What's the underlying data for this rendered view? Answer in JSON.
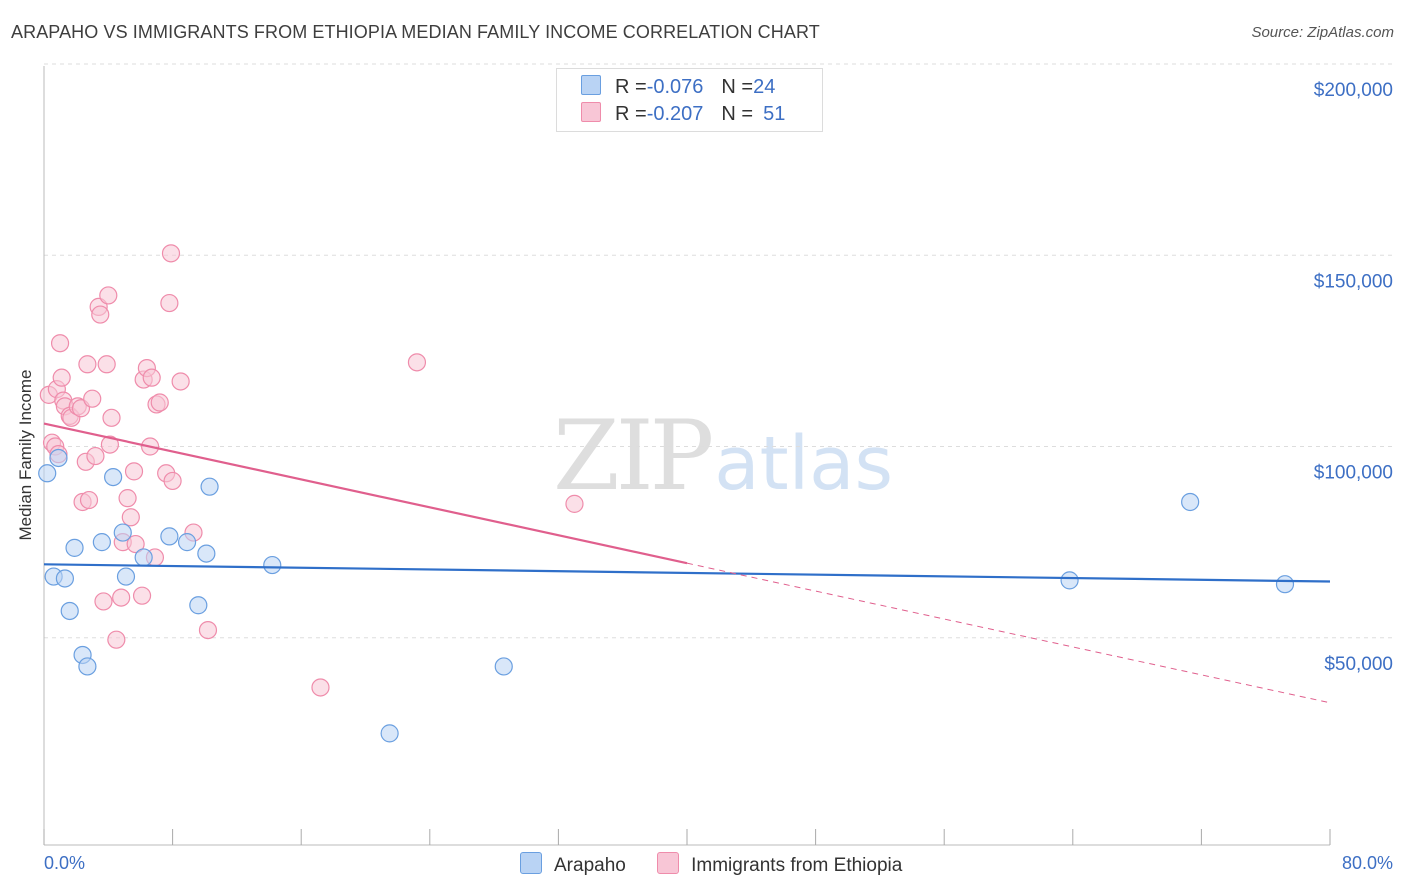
{
  "title": "ARAPAHO VS IMMIGRANTS FROM ETHIOPIA MEDIAN FAMILY INCOME CORRELATION CHART",
  "source": "Source: ZipAtlas.com",
  "watermark": {
    "part1": "ZIP",
    "part2": "atlas"
  },
  "legend": {
    "rows": [
      {
        "r_label": "R = ",
        "r_value": "-0.076",
        "n_label": "N = ",
        "n_value": "24"
      },
      {
        "r_label": "R = ",
        "r_value": "-0.207",
        "n_label": "N = ",
        "n_value": "51"
      }
    ]
  },
  "colors": {
    "arapaho": "#6a9fe0",
    "arapaho_fill": "#b9d3f4",
    "arapaho_line": "#2f6fc9",
    "ethiopia": "#ef8cab",
    "ethiopia_fill": "#f8c6d6",
    "ethiopia_line": "#e05f8d",
    "axis_label": "#3d6fc4",
    "grid": "#dddddd"
  },
  "chart_data": {
    "type": "scatter",
    "title": "ARAPAHO VS IMMIGRANTS FROM ETHIOPIA MEDIAN FAMILY INCOME CORRELATION CHART",
    "xlabel": "",
    "ylabel": "Median Family Income",
    "xlim": [
      0,
      80
    ],
    "ylim": [
      0,
      200000
    ],
    "x_tick_labels": [
      "0.0%",
      "80.0%"
    ],
    "y_ticks": [
      {
        "value": 50000,
        "label": "$50,000"
      },
      {
        "value": 100000,
        "label": "$100,000"
      },
      {
        "value": 150000,
        "label": "$150,000"
      },
      {
        "value": 200000,
        "label": "$200,000"
      }
    ],
    "grid": true,
    "legend_position": "bottom",
    "series": [
      {
        "name": "Arapaho",
        "r": -0.076,
        "n": 24,
        "trend": {
          "x": [
            0,
            80
          ],
          "y": [
            69200,
            64700
          ]
        },
        "points": [
          [
            0.2,
            93000
          ],
          [
            0.6,
            66000
          ],
          [
            0.9,
            97000
          ],
          [
            1.3,
            65500
          ],
          [
            1.6,
            57000
          ],
          [
            1.9,
            73500
          ],
          [
            2.4,
            45500
          ],
          [
            2.7,
            42500
          ],
          [
            3.6,
            75000
          ],
          [
            4.3,
            92000
          ],
          [
            4.9,
            77500
          ],
          [
            5.1,
            66000
          ],
          [
            6.2,
            71000
          ],
          [
            7.8,
            76500
          ],
          [
            8.9,
            75000
          ],
          [
            9.6,
            58500
          ],
          [
            10.1,
            72000
          ],
          [
            10.3,
            89500
          ],
          [
            14.2,
            69000
          ],
          [
            21.5,
            25000
          ],
          [
            28.6,
            42500
          ],
          [
            63.8,
            65000
          ],
          [
            71.3,
            85500
          ],
          [
            77.2,
            64000
          ]
        ]
      },
      {
        "name": "Immigrants from Ethiopia",
        "r": -0.207,
        "n": 51,
        "trend": {
          "x": [
            0,
            40
          ],
          "y": [
            106000,
            69500
          ]
        },
        "trend_extension": {
          "x": [
            40,
            80
          ],
          "y": [
            69500,
            33000
          ]
        },
        "points": [
          [
            0.3,
            113500
          ],
          [
            0.5,
            101000
          ],
          [
            0.7,
            100000
          ],
          [
            0.8,
            115000
          ],
          [
            0.9,
            98000
          ],
          [
            1.0,
            127000
          ],
          [
            1.1,
            118000
          ],
          [
            1.2,
            112000
          ],
          [
            1.3,
            110500
          ],
          [
            1.6,
            108000
          ],
          [
            1.7,
            107500
          ],
          [
            2.1,
            110500
          ],
          [
            2.3,
            110000
          ],
          [
            2.4,
            85500
          ],
          [
            2.6,
            96000
          ],
          [
            2.7,
            121500
          ],
          [
            2.8,
            86000
          ],
          [
            3.0,
            112500
          ],
          [
            3.2,
            97500
          ],
          [
            3.4,
            136500
          ],
          [
            3.5,
            134500
          ],
          [
            3.7,
            59500
          ],
          [
            3.9,
            121500
          ],
          [
            4.0,
            139500
          ],
          [
            4.1,
            100500
          ],
          [
            4.2,
            107500
          ],
          [
            4.5,
            49500
          ],
          [
            4.8,
            60500
          ],
          [
            4.9,
            75000
          ],
          [
            5.2,
            86500
          ],
          [
            5.4,
            81500
          ],
          [
            5.6,
            93500
          ],
          [
            5.7,
            74500
          ],
          [
            6.1,
            61000
          ],
          [
            6.2,
            117500
          ],
          [
            6.4,
            120500
          ],
          [
            6.6,
            100000
          ],
          [
            6.7,
            118000
          ],
          [
            6.9,
            71000
          ],
          [
            7.0,
            111000
          ],
          [
            7.2,
            111500
          ],
          [
            7.6,
            93000
          ],
          [
            7.8,
            137500
          ],
          [
            7.9,
            150500
          ],
          [
            8.0,
            91000
          ],
          [
            8.5,
            117000
          ],
          [
            9.3,
            77500
          ],
          [
            10.2,
            52000
          ],
          [
            17.2,
            37000
          ],
          [
            23.2,
            122000
          ],
          [
            33.0,
            85000
          ]
        ]
      }
    ]
  }
}
